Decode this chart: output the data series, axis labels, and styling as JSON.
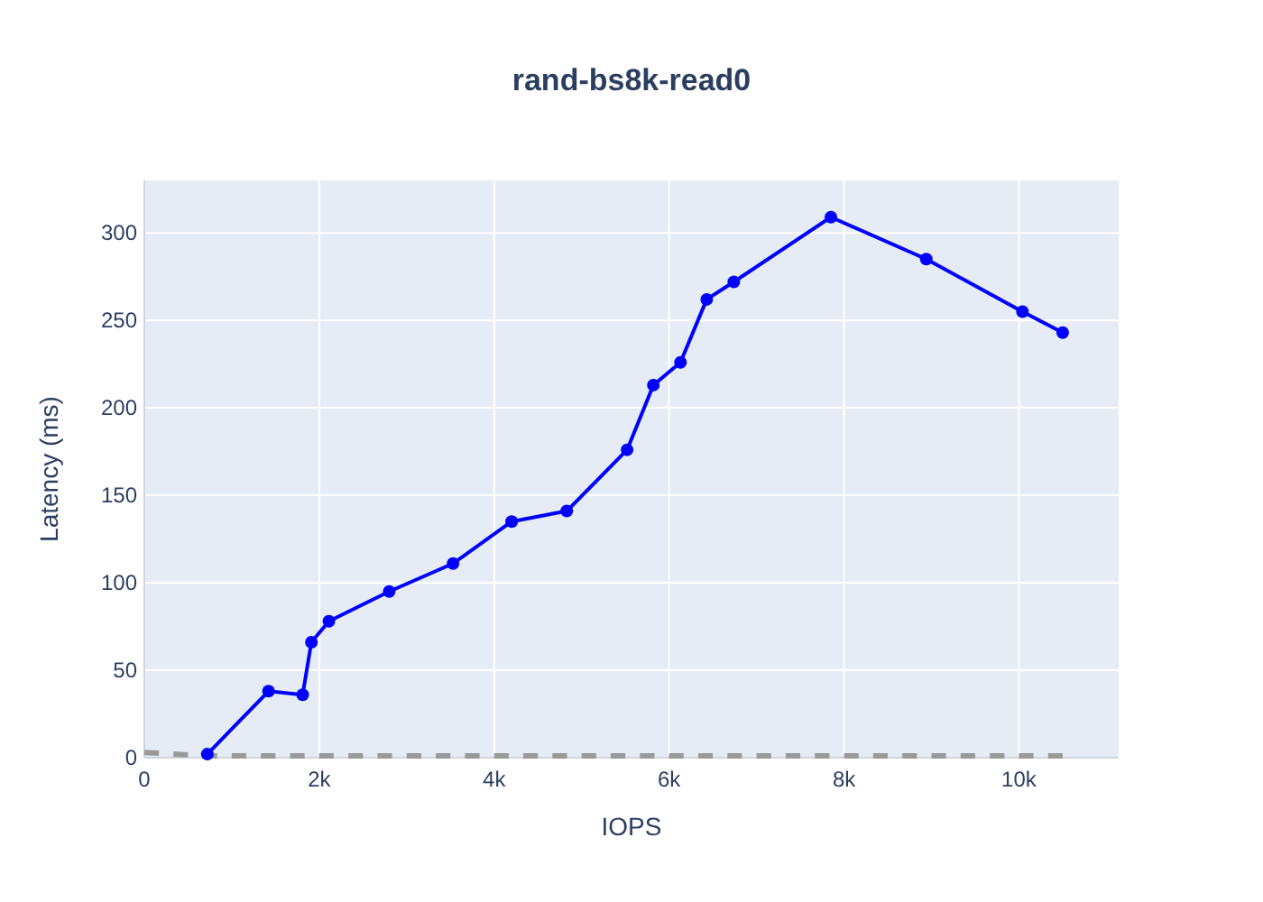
{
  "chart_data": {
    "type": "line",
    "title": "rand-bs8k-read0",
    "xlabel": "IOPS",
    "ylabel": "Latency (ms)",
    "series": [
      {
        "color": "#999999",
        "x": [
          0,
          720,
          10500
        ],
        "values": [
          3,
          1,
          1
        ],
        "marker": "none",
        "line_style": "dashed"
      },
      {
        "color": "#0000ff",
        "x": [
          720,
          1420,
          1810,
          1910,
          2110,
          2800,
          3530,
          4200,
          4830,
          5520,
          5820,
          6130,
          6430,
          6740,
          7850,
          8940,
          10040,
          10500
        ],
        "values": [
          2,
          38,
          36,
          66,
          78,
          95,
          111,
          135,
          141,
          176,
          213,
          226,
          262,
          272,
          309,
          285,
          255,
          243
        ],
        "marker": "circle",
        "line_style": "solid"
      }
    ],
    "xlim": [
      0,
      11140
    ],
    "ylim": [
      0,
      330
    ],
    "xticks": [
      0,
      {
        "value": 2000,
        "label": "2k"
      },
      {
        "value": 4000,
        "label": "4k"
      },
      {
        "value": 6000,
        "label": "6k"
      },
      {
        "value": 8000,
        "label": "8k"
      },
      {
        "value": 10000,
        "label": "10k"
      }
    ],
    "yticks": [
      0,
      50,
      100,
      150,
      200,
      250,
      300
    ],
    "grid": true
  }
}
